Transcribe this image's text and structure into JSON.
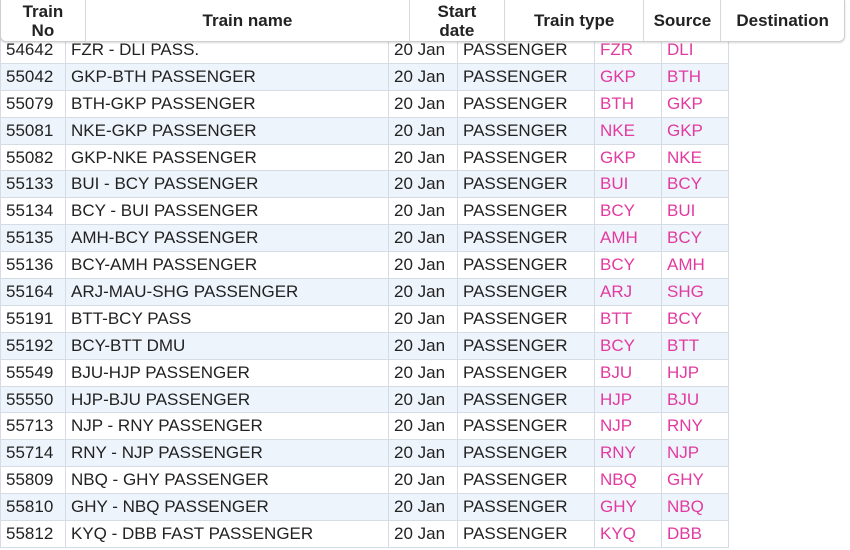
{
  "header": {
    "columns": [
      "Train No",
      "Train name",
      "Start date",
      "Train type",
      "Source",
      "Destination"
    ]
  },
  "table": {
    "rows": [
      [
        "54642",
        "FZR - DLI PASS.",
        "20 Jan",
        "PASSENGER",
        "FZR",
        "DLI"
      ],
      [
        "55042",
        "GKP-BTH PASSENGER",
        "20 Jan",
        "PASSENGER",
        "GKP",
        "BTH"
      ],
      [
        "55079",
        "BTH-GKP PASSENGER",
        "20 Jan",
        "PASSENGER",
        "BTH",
        "GKP"
      ],
      [
        "55081",
        "NKE-GKP PASSENGER",
        "20 Jan",
        "PASSENGER",
        "NKE",
        "GKP"
      ],
      [
        "55082",
        "GKP-NKE PASSENGER",
        "20 Jan",
        "PASSENGER",
        "GKP",
        "NKE"
      ],
      [
        "55133",
        "BUI - BCY PASSENGER",
        "20 Jan",
        "PASSENGER",
        "BUI",
        "BCY"
      ],
      [
        "55134",
        "BCY - BUI PASSENGER",
        "20 Jan",
        "PASSENGER",
        "BCY",
        "BUI"
      ],
      [
        "55135",
        "AMH-BCY PASSENGER",
        "20 Jan",
        "PASSENGER",
        "AMH",
        "BCY"
      ],
      [
        "55136",
        "BCY-AMH PASSENGER",
        "20 Jan",
        "PASSENGER",
        "BCY",
        "AMH"
      ],
      [
        "55164",
        "ARJ-MAU-SHG PASSENGER",
        "20 Jan",
        "PASSENGER",
        "ARJ",
        "SHG"
      ],
      [
        "55191",
        "BTT-BCY PASS",
        "20 Jan",
        "PASSENGER",
        "BTT",
        "BCY"
      ],
      [
        "55192",
        "BCY-BTT DMU",
        "20 Jan",
        "PASSENGER",
        "BCY",
        "BTT"
      ],
      [
        "55549",
        "BJU-HJP PASSENGER",
        "20 Jan",
        "PASSENGER",
        "BJU",
        "HJP"
      ],
      [
        "55550",
        "HJP-BJU PASSENGER",
        "20 Jan",
        "PASSENGER",
        "HJP",
        "BJU"
      ],
      [
        "55713",
        "NJP - RNY PASSENGER",
        "20 Jan",
        "PASSENGER",
        "NJP",
        "RNY"
      ],
      [
        "55714",
        "RNY - NJP PASSENGER",
        "20 Jan",
        "PASSENGER",
        "RNY",
        "NJP"
      ],
      [
        "55809",
        "NBQ - GHY PASSENGER",
        "20 Jan",
        "PASSENGER",
        "NBQ",
        "GHY"
      ],
      [
        "55810",
        "GHY - NBQ PASSENGER",
        "20 Jan",
        "PASSENGER",
        "GHY",
        "NBQ"
      ],
      [
        "55812",
        "KYQ - DBB FAST PASSENGER",
        "20 Jan",
        "PASSENGER",
        "KYQ",
        "DBB"
      ]
    ]
  }
}
